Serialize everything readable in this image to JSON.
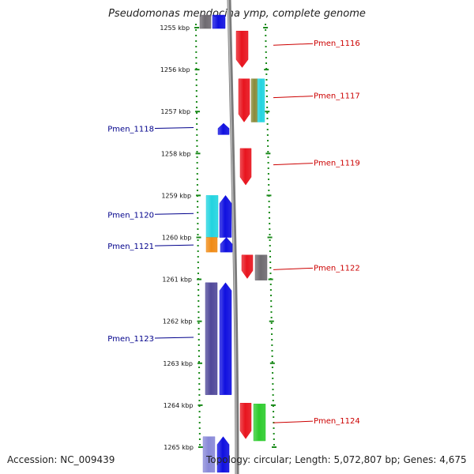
{
  "title": "Pseudomonas mendocina ymp, complete genome",
  "footer": {
    "accession": "Accession: NC_009439",
    "topology": "Topology: circular; Length: 5,072,807 bp; Genes: 4,675"
  },
  "axis": {
    "ticks": [
      "1255 kbp",
      "1256 kbp",
      "1257 kbp",
      "1258 kbp",
      "1259 kbp",
      "1260 kbp",
      "1261 kbp",
      "1262 kbp",
      "1263 kbp",
      "1264 kbp",
      "1265 kbp"
    ],
    "tick_values_kbp": [
      1255,
      1256,
      1257,
      1258,
      1259,
      1260,
      1261,
      1262,
      1263,
      1264,
      1265
    ]
  },
  "colors": {
    "forward_label": "#cc0000",
    "reverse_label": "#00008b",
    "red": "#e8141e",
    "blue": "#1010e0",
    "cyan": "#22d4e0",
    "orange": "#f08a14",
    "navy": "#50489a",
    "grey": "#6e6a70",
    "olive": "#8a8a3a",
    "green": "#2ecc2e",
    "lavender": "#8888d8",
    "dots": "#1a8a1a"
  },
  "reverse_labels": [
    {
      "text": "Pmen_1118",
      "kbp": 1257.4
    },
    {
      "text": "Pmen_1120",
      "kbp": 1259.45
    },
    {
      "text": "Pmen_1121",
      "kbp": 1260.2
    },
    {
      "text": "Pmen_1123",
      "kbp": 1262.4
    }
  ],
  "forward_labels": [
    {
      "text": "Pmen_1116",
      "kbp": 1255.4
    },
    {
      "text": "Pmen_1117",
      "kbp": 1256.65
    },
    {
      "text": "Pmen_1119",
      "kbp": 1258.25
    },
    {
      "text": "Pmen_1122",
      "kbp": 1260.75
    },
    {
      "text": "Pmen_1124",
      "kbp": 1264.4
    }
  ]
}
